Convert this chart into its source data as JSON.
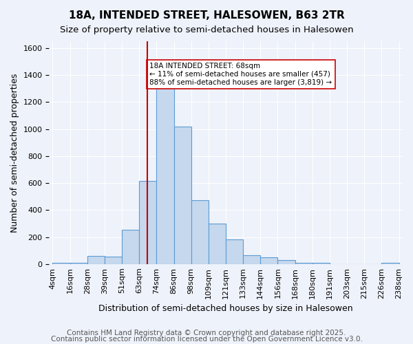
{
  "title": "18A, INTENDED STREET, HALESOWEN, B63 2TR",
  "subtitle": "Size of property relative to semi-detached houses in Halesowen",
  "xlabel": "Distribution of semi-detached houses by size in Halesowen",
  "ylabel": "Number of semi-detached properties",
  "bin_labels": [
    "4sqm",
    "16sqm",
    "28sqm",
    "39sqm",
    "51sqm",
    "63sqm",
    "74sqm",
    "86sqm",
    "98sqm",
    "109sqm",
    "121sqm",
    "133sqm",
    "144sqm",
    "156sqm",
    "168sqm",
    "180sqm",
    "191sqm",
    "203sqm",
    "215sqm",
    "226sqm",
    "238sqm"
  ],
  "bar_heights": [
    10,
    10,
    60,
    55,
    255,
    615,
    1310,
    1020,
    475,
    300,
    180,
    65,
    50,
    30,
    10,
    10,
    0,
    0,
    0,
    10
  ],
  "bar_color": "#c5d8ed",
  "bar_edge_color": "#5b9bd5",
  "annotation_text": "18A INTENDED STREET: 68sqm\n← 11% of semi-detached houses are smaller (457)\n88% of semi-detached houses are larger (3,819) →",
  "annotation_box_color": "#ffffff",
  "annotation_box_edge_color": "#cc0000",
  "vline_color": "#cc0000",
  "background_color": "#eef2fa",
  "footer_line1": "Contains HM Land Registry data © Crown copyright and database right 2025.",
  "footer_line2": "Contains public sector information licensed under the Open Government Licence v3.0.",
  "ylim": [
    0,
    1650
  ],
  "title_fontsize": 11,
  "subtitle_fontsize": 9.5,
  "axis_label_fontsize": 9,
  "tick_fontsize": 8,
  "footer_fontsize": 7.5,
  "vline_x_index": 5.45
}
